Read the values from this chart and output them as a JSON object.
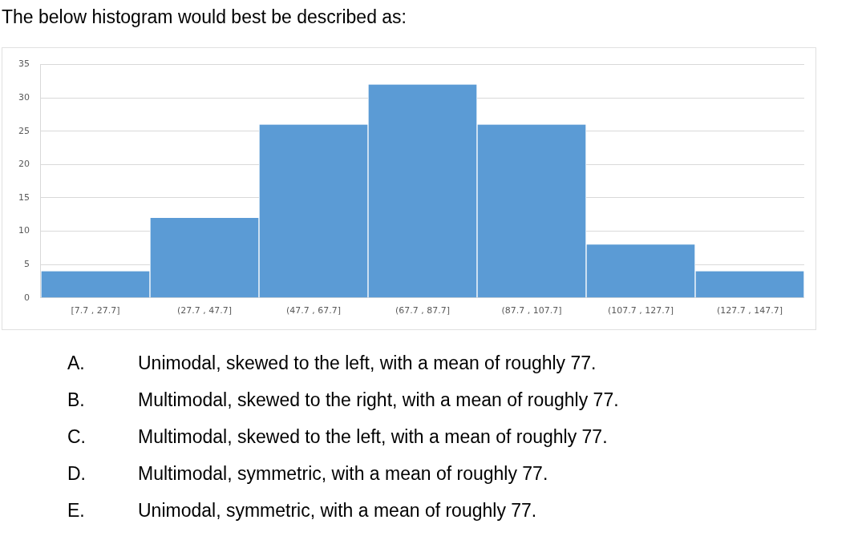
{
  "chart_data": {
    "type": "bar",
    "title": "The below histogram would best be described as:",
    "categories": [
      "[7.7 , 27.7]",
      "(27.7 , 47.7]",
      "(47.7 , 67.7]",
      "(67.7 , 87.7]",
      "(87.7 , 107.7]",
      "(107.7 , 127.7]",
      "(127.7 , 147.7]"
    ],
    "values": [
      4,
      12,
      26,
      32,
      26,
      8,
      4
    ],
    "color": "#5b9bd5",
    "ylim": [
      0,
      35
    ],
    "yticks": [
      0,
      5,
      10,
      15,
      20,
      25,
      30,
      35
    ],
    "grid": "y",
    "legend": false,
    "annotations": [
      "A.",
      "Unimodal, skewed to the left, with a mean of roughly 77.",
      "B.",
      "Multimodal, skewed to the right, with a mean of roughly 77.",
      "C.",
      "Multimodal, skewed to the left, with a mean of roughly 77.",
      "D.",
      "Multimodal, symmetric, with a mean of roughly 77.",
      "E.",
      "Unimodal, symmetric, with a mean of roughly 77."
    ]
  }
}
